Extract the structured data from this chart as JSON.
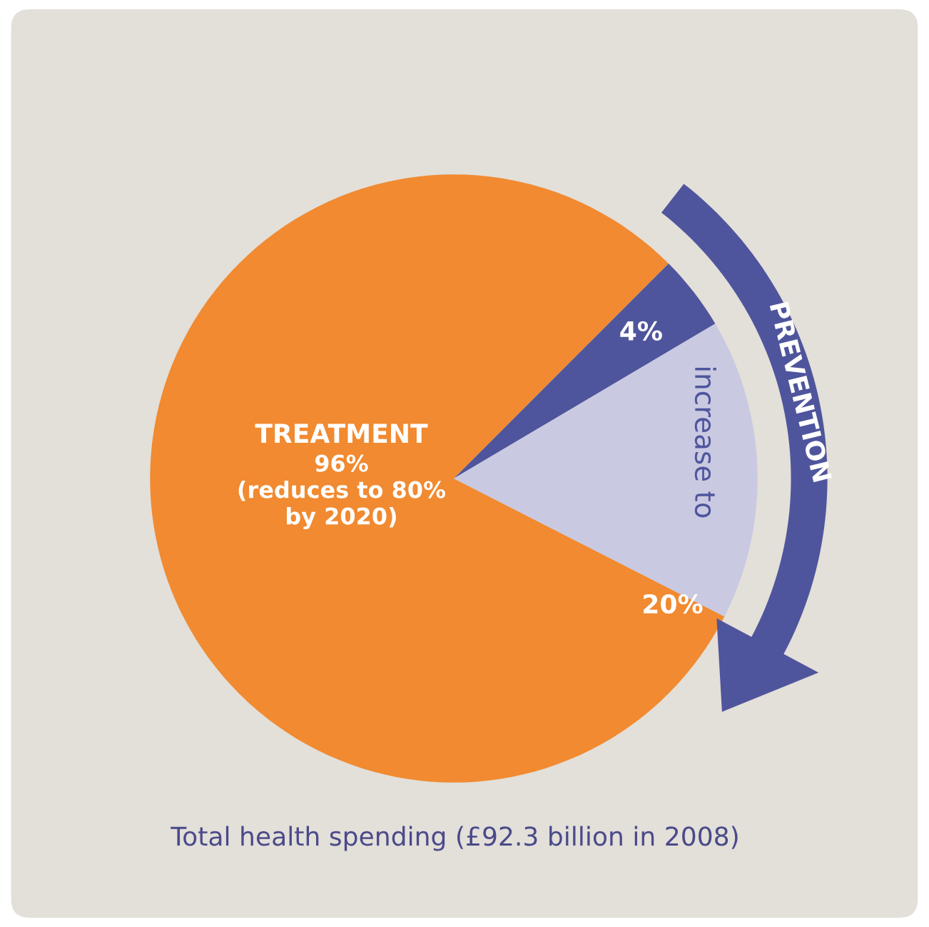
{
  "chart_data": {
    "type": "pie",
    "categories": [
      "TREATMENT",
      null,
      "increase to"
    ],
    "values": [
      80,
      4,
      16
    ],
    "colors": [
      "#f18a30",
      "#4f559c",
      "#c9c9e2"
    ],
    "value_labels": [
      "96%\n(reduces to 80%\nby 2020)",
      "4%",
      null
    ],
    "annotations": [
      "20%",
      "PREVENTION",
      "Total health spending (£92.3 billion in 2008)"
    ]
  }
}
